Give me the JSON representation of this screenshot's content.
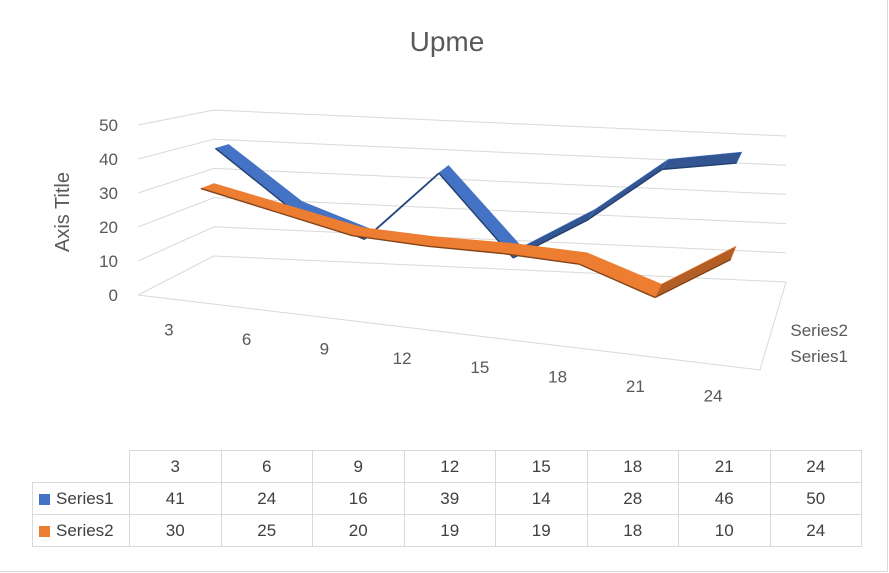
{
  "chart_data": {
    "type": "line",
    "subtype": "3d-line",
    "title": "Upme",
    "ylabel": "Axis Title",
    "xlabel": "",
    "ylim": [
      0,
      50
    ],
    "yticks": [
      "0",
      "10",
      "20",
      "30",
      "40",
      "50"
    ],
    "categories": [
      "3",
      "6",
      "9",
      "12",
      "15",
      "18",
      "21",
      "24"
    ],
    "series": [
      {
        "name": "Series1",
        "values": [
          41,
          24,
          16,
          39,
          14,
          28,
          46,
          50
        ],
        "color": "#4472c4"
      },
      {
        "name": "Series2",
        "values": [
          30,
          25,
          20,
          19,
          19,
          18,
          10,
          24
        ],
        "color": "#ed7d31"
      }
    ],
    "depth_labels": [
      "Series2",
      "Series1"
    ],
    "grid": true,
    "legend": "data-table"
  }
}
